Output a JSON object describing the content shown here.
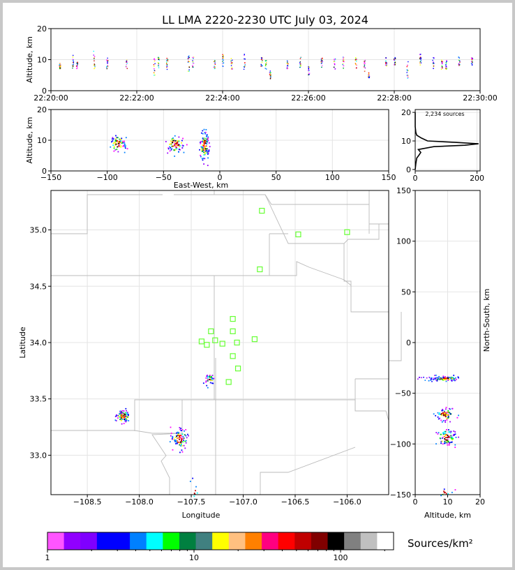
{
  "title": "LL LMA 2220-2230 UTC July 03, 2024",
  "colors": {
    "frame": "#c8c8c8",
    "background": "#ffffff",
    "grid": "#e4e4e4",
    "state_lines": "#bbbbbb",
    "stations": "#66ff33",
    "histogram": "#000000"
  },
  "chart_data": [
    {
      "id": "time_height",
      "type": "scatter",
      "xlabel": "",
      "ylabel": "Altitude, km",
      "xlim": [
        "22:20:00",
        "22:30:00"
      ],
      "ylim": [
        0,
        20
      ],
      "x_ticks": [
        "22:20:00",
        "22:22:00",
        "22:24:00",
        "22:26:00",
        "22:28:00",
        "22:30:00"
      ],
      "y_ticks": [
        0,
        10,
        20
      ],
      "grid": true,
      "bursts": [
        {
          "t": "22:20:12",
          "zmin": 7,
          "zmax": 9
        },
        {
          "t": "22:20:30",
          "zmin": 7,
          "zmax": 12
        },
        {
          "t": "22:20:36",
          "zmin": 7,
          "zmax": 10
        },
        {
          "t": "22:21:00",
          "zmin": 7,
          "zmax": 13
        },
        {
          "t": "22:21:18",
          "zmin": 7,
          "zmax": 11
        },
        {
          "t": "22:21:45",
          "zmin": 7,
          "zmax": 10
        },
        {
          "t": "22:22:24",
          "zmin": 5,
          "zmax": 13
        },
        {
          "t": "22:22:30",
          "zmin": 7,
          "zmax": 11
        },
        {
          "t": "22:22:42",
          "zmin": 7,
          "zmax": 11
        },
        {
          "t": "22:23:12",
          "zmin": 6,
          "zmax": 12
        },
        {
          "t": "22:23:18",
          "zmin": 7,
          "zmax": 11
        },
        {
          "t": "22:23:48",
          "zmin": 7,
          "zmax": 10
        },
        {
          "t": "22:24:00",
          "zmin": 8,
          "zmax": 12
        },
        {
          "t": "22:24:12",
          "zmin": 7,
          "zmax": 11
        },
        {
          "t": "22:24:30",
          "zmin": 7,
          "zmax": 12
        },
        {
          "t": "22:24:54",
          "zmin": 8,
          "zmax": 11
        },
        {
          "t": "22:25:00",
          "zmin": 7,
          "zmax": 10
        },
        {
          "t": "22:25:06",
          "zmin": 4,
          "zmax": 7
        },
        {
          "t": "22:25:30",
          "zmin": 7,
          "zmax": 10
        },
        {
          "t": "22:25:48",
          "zmin": 7,
          "zmax": 11
        },
        {
          "t": "22:26:00",
          "zmin": 5,
          "zmax": 8
        },
        {
          "t": "22:26:18",
          "zmin": 7,
          "zmax": 11
        },
        {
          "t": "22:26:36",
          "zmin": 7,
          "zmax": 11
        },
        {
          "t": "22:26:48",
          "zmin": 7,
          "zmax": 11
        },
        {
          "t": "22:27:06",
          "zmin": 7,
          "zmax": 11
        },
        {
          "t": "22:27:18",
          "zmin": 6,
          "zmax": 10
        },
        {
          "t": "22:27:24",
          "zmin": 4,
          "zmax": 6
        },
        {
          "t": "22:27:48",
          "zmin": 8,
          "zmax": 11
        },
        {
          "t": "22:28:00",
          "zmin": 8,
          "zmax": 11
        },
        {
          "t": "22:28:18",
          "zmin": 4,
          "zmax": 10
        },
        {
          "t": "22:28:36",
          "zmin": 8,
          "zmax": 12
        },
        {
          "t": "22:28:54",
          "zmin": 7,
          "zmax": 11
        },
        {
          "t": "22:29:06",
          "zmin": 7,
          "zmax": 11
        },
        {
          "t": "22:29:12",
          "zmin": 7,
          "zmax": 10
        },
        {
          "t": "22:29:30",
          "zmin": 8,
          "zmax": 11
        },
        {
          "t": "22:29:48",
          "zmin": 8,
          "zmax": 11
        }
      ]
    },
    {
      "id": "east_west_altitude",
      "type": "scatter",
      "xlabel": "East-West, km",
      "ylabel": "Altitude, km",
      "xlim": [
        -150,
        150
      ],
      "ylim": [
        0,
        20
      ],
      "x_ticks": [
        -150,
        -100,
        -50,
        0,
        50,
        100,
        150
      ],
      "y_ticks": [
        0,
        10,
        20
      ],
      "grid": true,
      "clusters": [
        {
          "x": -91,
          "z": 9,
          "sx": 3,
          "sz": 1.4,
          "n": 70
        },
        {
          "x": -40,
          "z": 9,
          "sx": 4,
          "sz": 1.4,
          "n": 80
        },
        {
          "x": -14,
          "z": 8.5,
          "sx": 2,
          "sz": 2.2,
          "n": 110
        }
      ]
    },
    {
      "id": "altitude_histogram",
      "type": "line",
      "annotation": "2,234 sources",
      "xlim": [
        0,
        210
      ],
      "ylim": [
        0,
        20
      ],
      "x_ticks": [
        0,
        200
      ],
      "y_ticks": [
        0,
        10,
        20
      ],
      "grid": true,
      "altitude": [
        0,
        2,
        4,
        5,
        6,
        7,
        8,
        8.5,
        9,
        9.5,
        10,
        11,
        12,
        13,
        15,
        20
      ],
      "sources": [
        0,
        2,
        5,
        12,
        18,
        10,
        60,
        160,
        205,
        130,
        40,
        20,
        5,
        2,
        0,
        0
      ]
    },
    {
      "id": "plan_view",
      "type": "scatter",
      "xlabel": "Longitude",
      "ylabel": "Latitude",
      "xlim": [
        -108.85,
        -105.6
      ],
      "ylim": [
        32.65,
        35.35
      ],
      "x_ticks": [
        -108.5,
        -108.0,
        -107.5,
        -107.0,
        -106.5,
        -106.0
      ],
      "y_ticks": [
        33.0,
        33.5,
        34.0,
        34.5,
        35.0
      ],
      "grid": true,
      "stations": [
        {
          "lon": -106.82,
          "lat": 35.17
        },
        {
          "lon": -106.47,
          "lat": 34.96
        },
        {
          "lon": -106.0,
          "lat": 34.98
        },
        {
          "lon": -106.84,
          "lat": 34.65
        },
        {
          "lon": -107.1,
          "lat": 34.21
        },
        {
          "lon": -107.31,
          "lat": 34.1
        },
        {
          "lon": -107.1,
          "lat": 34.1
        },
        {
          "lon": -107.4,
          "lat": 34.01
        },
        {
          "lon": -107.27,
          "lat": 34.02
        },
        {
          "lon": -107.35,
          "lat": 33.98
        },
        {
          "lon": -107.2,
          "lat": 33.99
        },
        {
          "lon": -107.06,
          "lat": 34.0
        },
        {
          "lon": -106.89,
          "lat": 34.03
        },
        {
          "lon": -107.1,
          "lat": 33.88
        },
        {
          "lon": -107.05,
          "lat": 33.77
        },
        {
          "lon": -107.14,
          "lat": 33.65
        }
      ],
      "clusters": [
        {
          "lon": -108.16,
          "lat": 33.35,
          "s_lon": 0.03,
          "s_lat": 0.03,
          "n": 90
        },
        {
          "lon": -107.62,
          "lat": 33.15,
          "s_lon": 0.04,
          "s_lat": 0.05,
          "n": 90
        },
        {
          "lon": -107.33,
          "lat": 33.68,
          "s_lon": 0.02,
          "s_lat": 0.02,
          "n": 35
        },
        {
          "lon": -107.48,
          "lat": 32.69,
          "s_lon": 0.03,
          "s_lat": 0.05,
          "n": 8
        }
      ]
    },
    {
      "id": "altitude_north_south",
      "type": "scatter",
      "xlabel": "Altitude, km",
      "ylabel": "North-South, km",
      "xlim": [
        0,
        20
      ],
      "ylim": [
        -150,
        150
      ],
      "x_ticks": [
        0,
        10,
        20
      ],
      "y_ticks": [
        -150,
        -100,
        -50,
        0,
        50,
        100,
        150
      ],
      "grid": true,
      "clusters": [
        {
          "z": 9,
          "y": -35,
          "sz": 2.2,
          "sy": 1,
          "n": 90,
          "tail": true
        },
        {
          "z": 9,
          "y": -70,
          "sz": 1.4,
          "sy": 3,
          "n": 70
        },
        {
          "z": 9.5,
          "y": -93,
          "sz": 1.4,
          "sy": 4,
          "n": 90
        },
        {
          "z": 9,
          "y": -147,
          "sz": 1.5,
          "sy": 2,
          "n": 10
        }
      ]
    }
  ],
  "colorbar": {
    "label": "Sources/km²",
    "tick_labels": [
      "1",
      "10",
      "100"
    ],
    "scale": "log",
    "colors": [
      "#ff55ff",
      "#9100ff",
      "#7f00ff",
      "#0000ff",
      "#0000ff",
      "#0080ff",
      "#00ffff",
      "#00ff00",
      "#008040",
      "#408080",
      "#ffff00",
      "#ffc080",
      "#ff8000",
      "#ff0080",
      "#ff0000",
      "#c00000",
      "#800000",
      "#000000",
      "#808080",
      "#c0c0c0",
      "#ffffff"
    ]
  }
}
